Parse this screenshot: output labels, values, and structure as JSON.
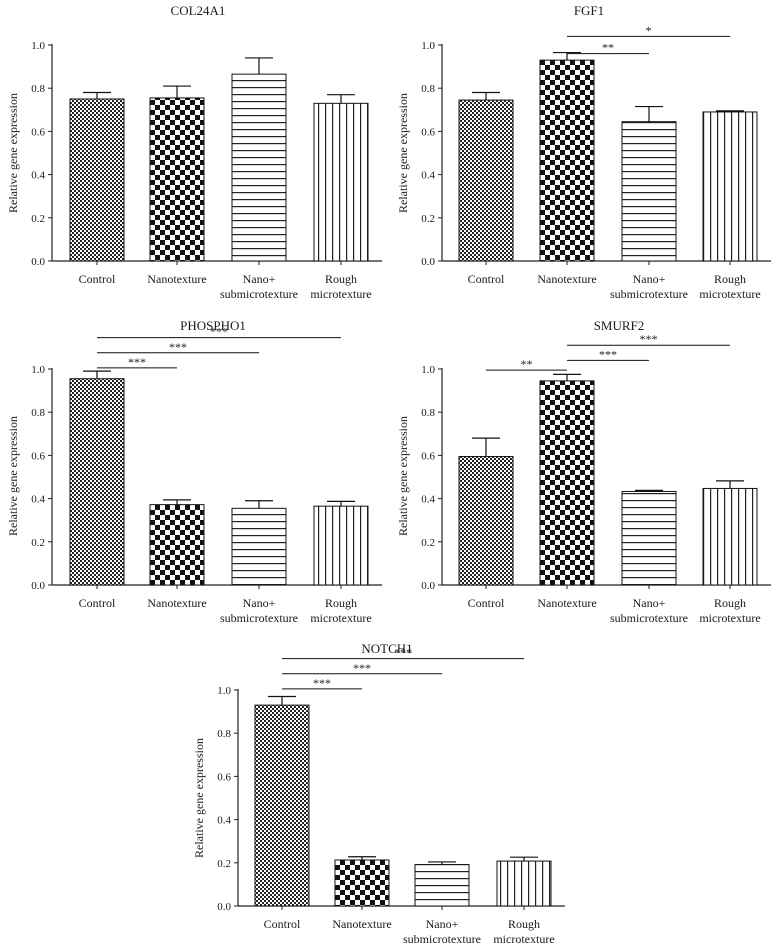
{
  "chart_data": [
    {
      "type": "bar",
      "title": "COL24A1",
      "ylabel": "Relative gene expression",
      "xlabel": "",
      "ylim": [
        0,
        1.0
      ],
      "yticks": [
        "0.0",
        "0.2",
        "0.4",
        "0.6",
        "0.8",
        "1.0"
      ],
      "categories": [
        [
          "Control"
        ],
        [
          "Nanotexture"
        ],
        [
          "Nano+",
          "submicrotexture"
        ],
        [
          "Rough",
          "microtexture"
        ]
      ],
      "values": [
        0.75,
        0.755,
        0.865,
        0.73
      ],
      "errors": [
        0.03,
        0.055,
        0.075,
        0.04
      ],
      "patterns": [
        "dense-check",
        "check",
        "hlines",
        "vlines"
      ],
      "significance": []
    },
    {
      "type": "bar",
      "title": "FGF1",
      "ylabel": "Relative gene expression",
      "xlabel": "",
      "ylim": [
        0,
        1.0
      ],
      "yticks": [
        "0.0",
        "0.2",
        "0.4",
        "0.6",
        "0.8",
        "1.0"
      ],
      "categories": [
        [
          "Control"
        ],
        [
          "Nanotexture"
        ],
        [
          "Nano+",
          "submicrotexture"
        ],
        [
          "Rough",
          "microtexture"
        ]
      ],
      "values": [
        0.745,
        0.93,
        0.645,
        0.69
      ],
      "errors": [
        0.035,
        0.035,
        0.07,
        0.005
      ],
      "patterns": [
        "dense-check",
        "check",
        "hlines",
        "vlines"
      ],
      "significance": [
        {
          "from": 1,
          "to": 2,
          "label": "**",
          "level": 0.96
        },
        {
          "from": 1,
          "to": 3,
          "label": "*",
          "level": 1.04
        }
      ]
    },
    {
      "type": "bar",
      "title": "PHOSPHO1",
      "ylabel": "Relative gene expression",
      "xlabel": "",
      "ylim": [
        0,
        1.0
      ],
      "yticks": [
        "0.0",
        "0.2",
        "0.4",
        "0.6",
        "0.8",
        "1.0"
      ],
      "categories": [
        [
          "Control"
        ],
        [
          "Nanotexture"
        ],
        [
          "Nano+",
          "submicrotexture"
        ],
        [
          "Rough",
          "microtexture"
        ]
      ],
      "values": [
        0.955,
        0.372,
        0.355,
        0.365
      ],
      "errors": [
        0.035,
        0.022,
        0.035,
        0.022
      ],
      "patterns": [
        "dense-check",
        "check",
        "hlines",
        "vlines"
      ],
      "significance": [
        {
          "from": 0,
          "to": 1,
          "label": "***",
          "level": 1.005
        },
        {
          "from": 0,
          "to": 2,
          "label": "***",
          "level": 1.075
        },
        {
          "from": 0,
          "to": 3,
          "label": "***",
          "level": 1.145
        }
      ]
    },
    {
      "type": "bar",
      "title": "SMURF2",
      "ylabel": "Relative gene expression",
      "xlabel": "",
      "ylim": [
        0,
        1.0
      ],
      "yticks": [
        "0.0",
        "0.2",
        "0.4",
        "0.6",
        "0.8",
        "1.0"
      ],
      "categories": [
        [
          "Control"
        ],
        [
          "Nanotexture"
        ],
        [
          "Nano+",
          "submicrotexture"
        ],
        [
          "Rough",
          "microtexture"
        ]
      ],
      "values": [
        0.595,
        0.945,
        0.433,
        0.447
      ],
      "errors": [
        0.085,
        0.03,
        0.005,
        0.035
      ],
      "patterns": [
        "dense-check",
        "check",
        "hlines",
        "vlines"
      ],
      "significance": [
        {
          "from": 0,
          "to": 1,
          "label": "**",
          "level": 0.995
        },
        {
          "from": 1,
          "to": 2,
          "label": "***",
          "level": 1.04
        },
        {
          "from": 1,
          "to": 3,
          "label": "***",
          "level": 1.11
        }
      ]
    },
    {
      "type": "bar",
      "title": "NOTCH1",
      "ylabel": "Relative gene expression",
      "xlabel": "",
      "ylim": [
        0,
        1.0
      ],
      "yticks": [
        "0.0",
        "0.2",
        "0.4",
        "0.6",
        "0.8",
        "1.0"
      ],
      "categories": [
        [
          "Control"
        ],
        [
          "Nanotexture"
        ],
        [
          "Nano+",
          "submicrotexture"
        ],
        [
          "Rough",
          "microtexture"
        ]
      ],
      "values": [
        0.93,
        0.213,
        0.192,
        0.208
      ],
      "errors": [
        0.04,
        0.015,
        0.012,
        0.018
      ],
      "patterns": [
        "dense-check",
        "check",
        "hlines",
        "vlines"
      ],
      "significance": [
        {
          "from": 0,
          "to": 1,
          "label": "***",
          "level": 1.005
        },
        {
          "from": 0,
          "to": 2,
          "label": "***",
          "level": 1.075
        },
        {
          "from": 0,
          "to": 3,
          "label": "***",
          "level": 1.145
        }
      ]
    }
  ]
}
